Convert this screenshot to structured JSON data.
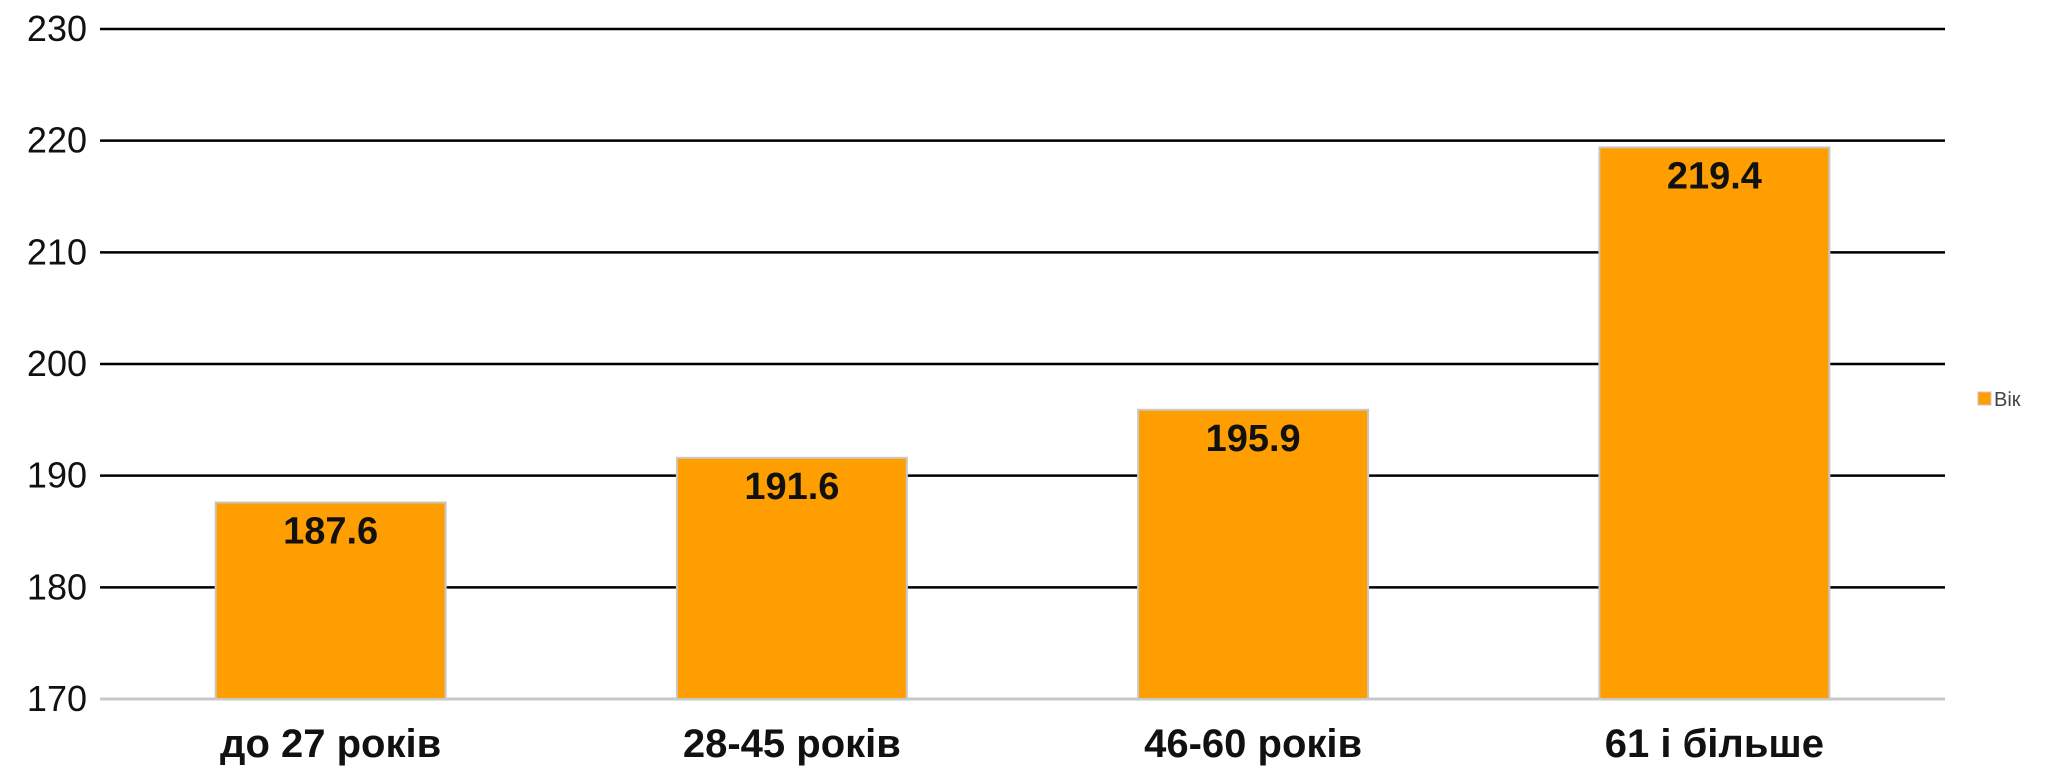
{
  "chart_data": {
    "type": "bar",
    "title": "",
    "xlabel": "",
    "ylabel": "",
    "categories": [
      "до 27 років",
      "28-45 років",
      "46-60 років",
      "61 і більше"
    ],
    "series": [
      {
        "name": "Вік",
        "values": [
          187.6,
          191.6,
          195.9,
          219.4
        ]
      }
    ],
    "data_labels": [
      "187.6",
      "191.6",
      "195.9",
      "219.4"
    ],
    "ylim": [
      170,
      230
    ],
    "yticks": [
      170,
      180,
      190,
      200,
      210,
      220,
      230
    ],
    "grid": true,
    "legend_position": "right",
    "colors": {
      "bar": "#FF9E00",
      "bar_border": "#C8C8C8",
      "grid": "#000000",
      "baseline": "#C8C8C8",
      "text": "#111111"
    }
  }
}
